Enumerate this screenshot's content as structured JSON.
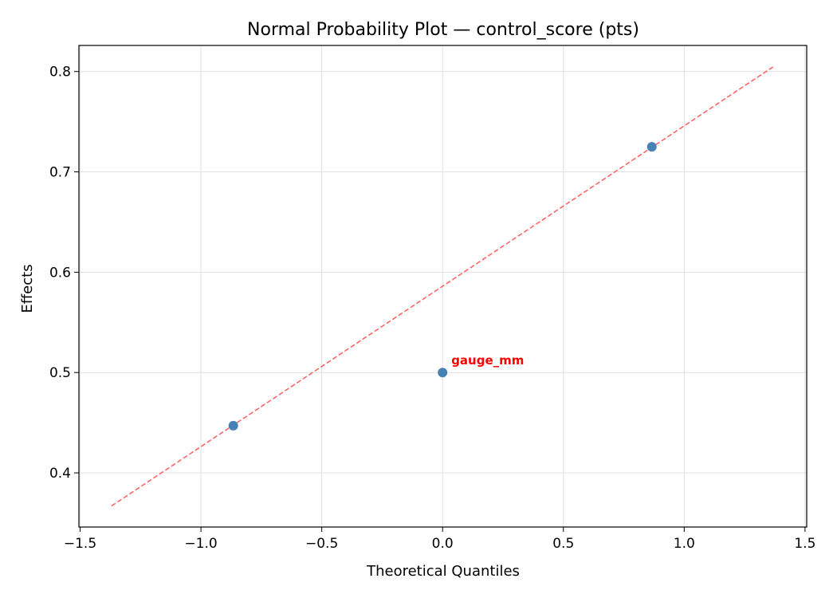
{
  "chart_data": {
    "type": "scatter",
    "title": "Normal Probability Plot — control_score (pts)",
    "xlabel": "Theoretical Quantiles",
    "ylabel": "Effects",
    "xlim": [
      -1.505,
      1.507
    ],
    "ylim": [
      0.346,
      0.826
    ],
    "xticks": [
      {
        "value": -1.5,
        "label": "−1.5"
      },
      {
        "value": -1.0,
        "label": "−1.0"
      },
      {
        "value": -0.5,
        "label": "−0.5"
      },
      {
        "value": 0,
        "label": "0.0"
      },
      0.5,
      {
        "value": 1.0,
        "label": "1.0"
      },
      1.5
    ],
    "yticks": [
      0.4,
      0.5,
      0.6,
      0.7,
      0.8
    ],
    "grid": true,
    "series": [
      {
        "color": "#4682b4",
        "x": [
          -0.866,
          0,
          0.866
        ],
        "values": [
          0.447,
          0.5,
          0.725
        ]
      }
    ],
    "reference_line": {
      "color": "#ff6666",
      "dashed": true,
      "x": [
        -1.37,
        1.37
      ],
      "values": [
        0.367,
        0.805
      ]
    },
    "annotations": [
      {
        "text": "gauge_mm",
        "x": 0,
        "y": 0.5,
        "color": "#ff0000"
      }
    ]
  }
}
